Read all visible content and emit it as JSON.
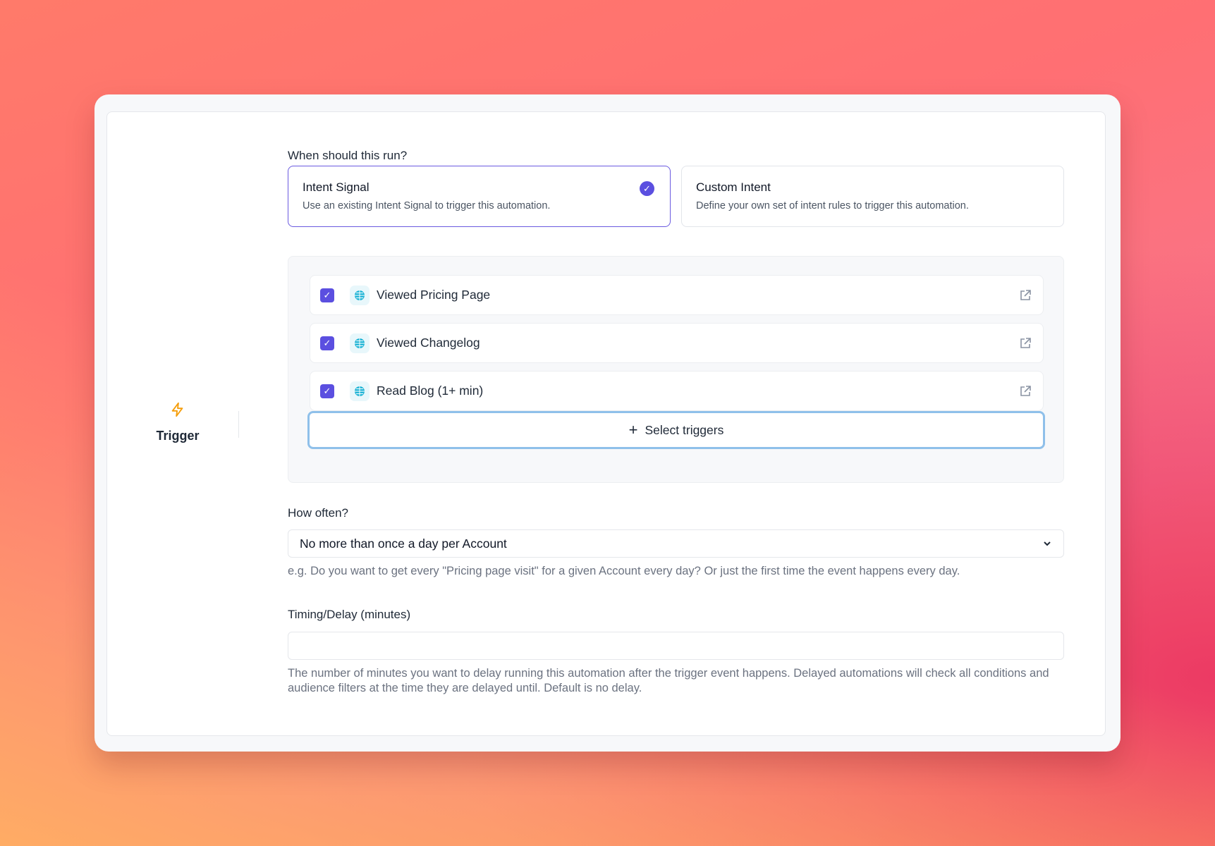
{
  "sidebar": {
    "step_label": "Trigger",
    "step_icon": "lightning-bolt-icon",
    "icon_color": "#f59e0b"
  },
  "run": {
    "label": "When should this run?",
    "options": [
      {
        "title": "Intent Signal",
        "description": "Use an existing Intent Signal to trigger this automation.",
        "selected": true
      },
      {
        "title": "Custom Intent",
        "description": "Define your own set of intent rules to trigger this automation.",
        "selected": false
      }
    ]
  },
  "triggers": {
    "items": [
      {
        "label": "Viewed Pricing Page",
        "checked": true,
        "icon": "globe-www-icon"
      },
      {
        "label": "Viewed Changelog",
        "checked": true,
        "icon": "globe-www-icon"
      },
      {
        "label": "Read Blog (1+ min)",
        "checked": true,
        "icon": "globe-www-icon"
      }
    ],
    "select_button": "Select triggers"
  },
  "frequency": {
    "label": "How often?",
    "value": "No more than once a day per Account",
    "help": "e.g. Do you want to get every \"Pricing page visit\" for a given Account every day? Or just the first time the event happens every day."
  },
  "delay": {
    "label": "Timing/Delay (minutes)",
    "value": "",
    "help": "The number of minutes you want to delay running this automation after the trigger event happens. Delayed automations will check all conditions and audience filters at the time they are delayed until. Default is no delay."
  },
  "colors": {
    "accent": "#5b4fe0",
    "focus_ring": "#8fc0ea"
  }
}
